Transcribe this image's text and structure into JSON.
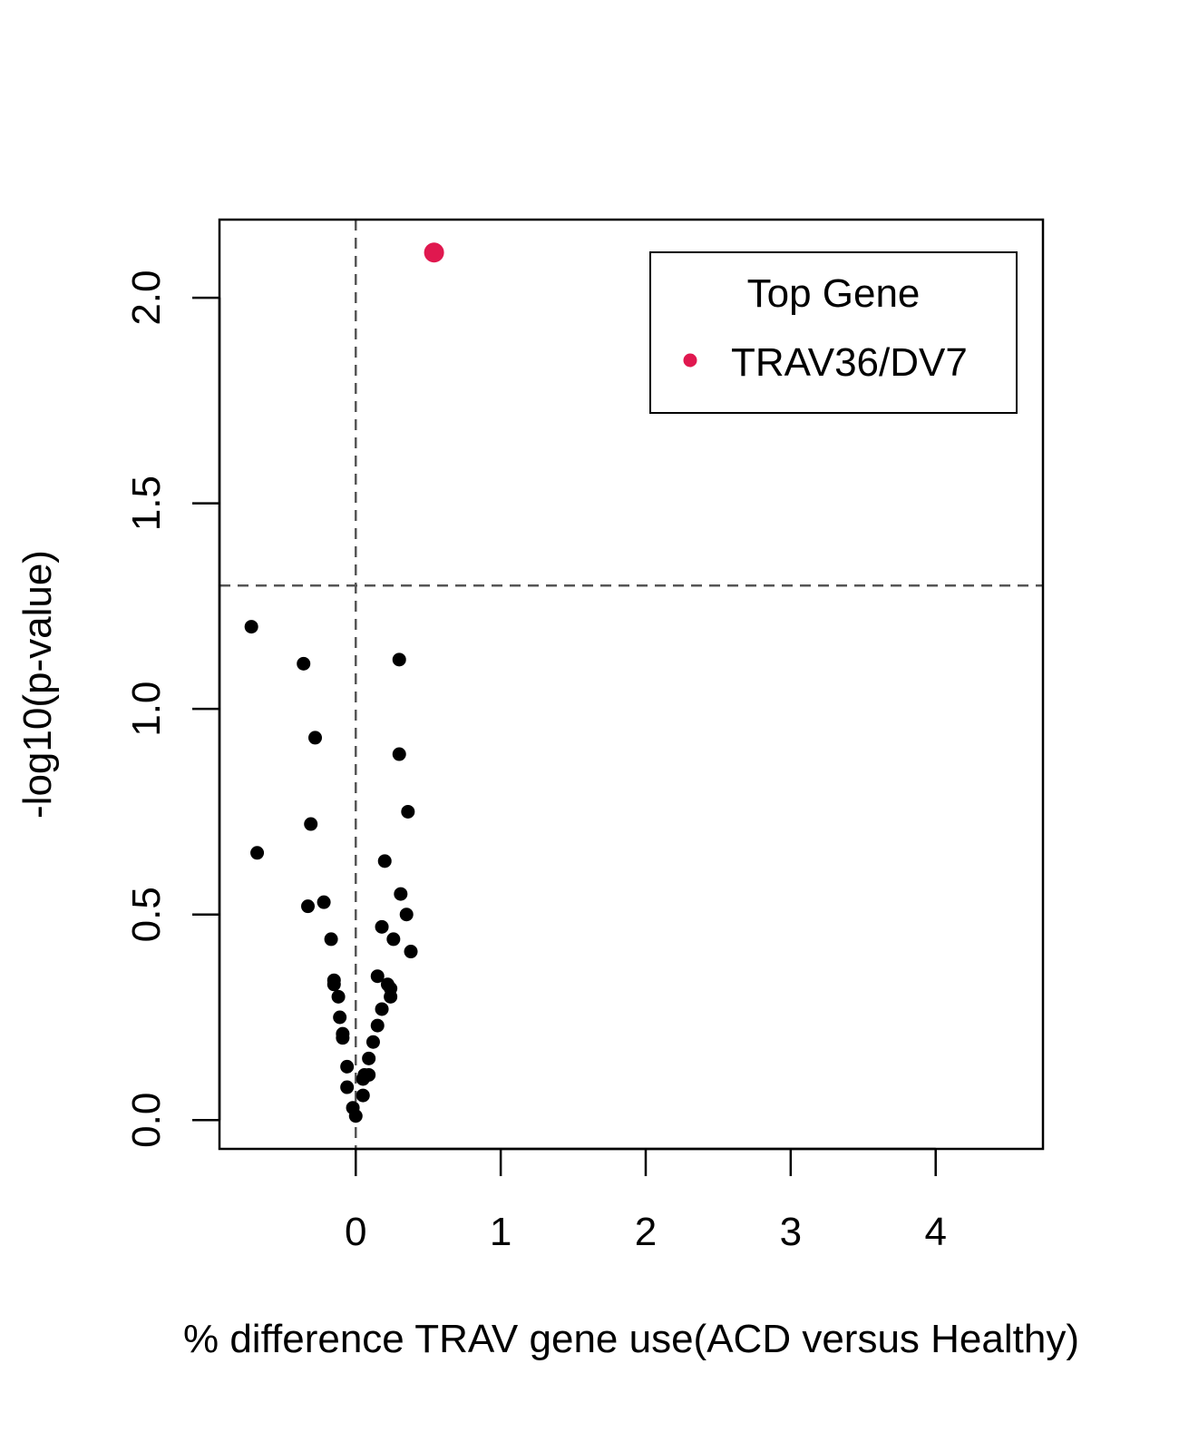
{
  "chart_data": {
    "type": "scatter",
    "xlabel": "% difference TRAV gene use(ACD versus Healthy)",
    "ylabel": "-log10(p-value)",
    "xlim": [
      -0.94,
      4.74
    ],
    "ylim": [
      -0.07,
      2.19
    ],
    "x_ticks": [
      0,
      1,
      2,
      3,
      4
    ],
    "x_tick_labels": [
      "0",
      "1",
      "2",
      "3",
      "4"
    ],
    "y_ticks": [
      0.0,
      0.5,
      1.0,
      1.5,
      2.0
    ],
    "y_tick_labels": [
      "0.0",
      "0.5",
      "1.0",
      "1.5",
      "2.0"
    ],
    "reference_lines": {
      "vertical_x": 0,
      "horizontal_y": 1.3,
      "style": "dashed",
      "color": "#555555"
    },
    "legend": {
      "title": "Top Gene",
      "position": "top-right",
      "entries": [
        "TRAV36/DV7"
      ]
    },
    "series": [
      {
        "name": "TRAV36/DV7",
        "color": "#e0184f",
        "points": [
          [
            0.54,
            2.11
          ]
        ]
      },
      {
        "color": "#000000",
        "points": [
          [
            -0.72,
            1.2
          ],
          [
            -0.36,
            1.11
          ],
          [
            -0.28,
            0.93
          ],
          [
            -0.31,
            0.72
          ],
          [
            -0.68,
            0.65
          ],
          [
            -0.33,
            0.52
          ],
          [
            -0.22,
            0.53
          ],
          [
            -0.17,
            0.44
          ],
          [
            -0.15,
            0.34
          ],
          [
            -0.15,
            0.33
          ],
          [
            -0.12,
            0.3
          ],
          [
            -0.11,
            0.25
          ],
          [
            -0.09,
            0.21
          ],
          [
            -0.09,
            0.2
          ],
          [
            -0.06,
            0.13
          ],
          [
            -0.06,
            0.08
          ],
          [
            -0.02,
            0.03
          ],
          [
            0.0,
            0.01
          ],
          [
            0.05,
            0.06
          ],
          [
            0.05,
            0.1
          ],
          [
            0.06,
            0.11
          ],
          [
            0.09,
            0.11
          ],
          [
            0.09,
            0.15
          ],
          [
            0.12,
            0.19
          ],
          [
            0.15,
            0.23
          ],
          [
            0.18,
            0.27
          ],
          [
            0.15,
            0.35
          ],
          [
            0.22,
            0.33
          ],
          [
            0.24,
            0.32
          ],
          [
            0.24,
            0.3
          ],
          [
            0.18,
            0.47
          ],
          [
            0.26,
            0.44
          ],
          [
            0.38,
            0.41
          ],
          [
            0.35,
            0.5
          ],
          [
            0.31,
            0.55
          ],
          [
            0.2,
            0.63
          ],
          [
            0.36,
            0.75
          ],
          [
            0.3,
            0.89
          ],
          [
            0.3,
            1.12
          ]
        ]
      }
    ]
  }
}
